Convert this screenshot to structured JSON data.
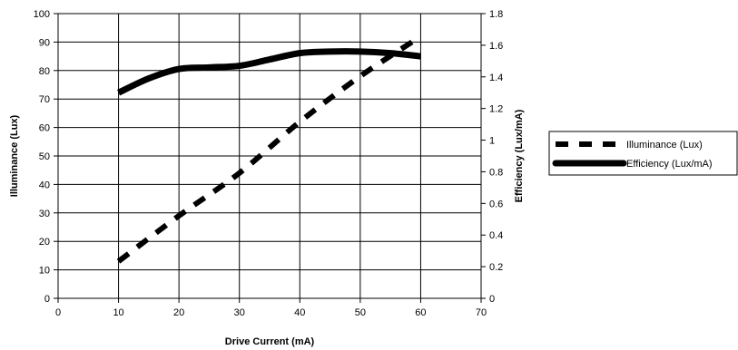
{
  "chart_data": {
    "type": "line",
    "xlabel": "Drive Current (mA)",
    "ylabel": "Illuminance (Lux)",
    "y2label": "Efficiency (Lux/mA)",
    "xlim": [
      0,
      70
    ],
    "ylim": [
      0,
      100
    ],
    "y2lim": [
      0,
      1.8
    ],
    "xticks": [
      "0",
      "10",
      "20",
      "30",
      "40",
      "50",
      "60",
      "70"
    ],
    "yticks": [
      "0",
      "10",
      "20",
      "30",
      "40",
      "50",
      "60",
      "70",
      "80",
      "90",
      "100"
    ],
    "y2ticks": [
      "0",
      "0.2",
      "0.4",
      "0.6",
      "0.8",
      "1",
      "1.2",
      "1.4",
      "1.6",
      "1.8"
    ],
    "legend_position": "right",
    "series": [
      {
        "name": "Illuminance (Lux)",
        "axis": "left",
        "style": "dashed",
        "color": "#000000",
        "x": [
          10,
          20,
          30,
          40,
          50,
          60
        ],
        "y": [
          13,
          29,
          44,
          62,
          78,
          92
        ]
      },
      {
        "name": "Efficiency (Lux/mA)",
        "axis": "right",
        "style": "solid",
        "color": "#000000",
        "x": [
          10,
          15,
          20,
          25,
          30,
          35,
          40,
          45,
          50,
          55,
          60
        ],
        "y": [
          1.3,
          1.39,
          1.45,
          1.46,
          1.47,
          1.51,
          1.55,
          1.56,
          1.56,
          1.55,
          1.53
        ]
      }
    ]
  }
}
